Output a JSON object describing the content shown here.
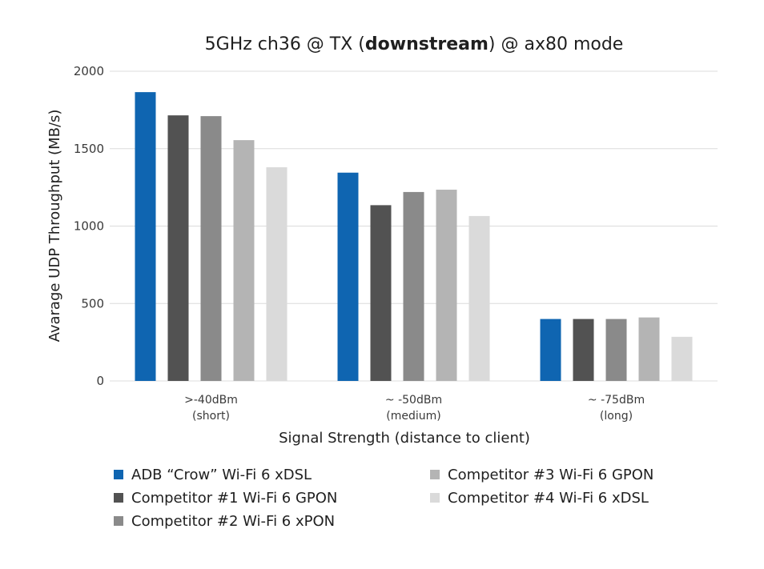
{
  "chart_data": {
    "type": "bar",
    "title": {
      "prefix": "5GHz ch36 @ TX (",
      "bold": "downstream",
      "suffix": ") @ ax80 mode"
    },
    "xlabel": "Signal Strength (distance to client)",
    "ylabel": "Avarage UDP Throughput (MB/s)",
    "ylim": [
      0,
      2000
    ],
    "yticks": [
      0,
      500,
      1000,
      1500,
      2000
    ],
    "grid": true,
    "legend_position": "bottom",
    "categories": [
      {
        "line1": ">-40dBm",
        "line2": "(short)"
      },
      {
        "line1": "~ -50dBm",
        "line2": "(medium)"
      },
      {
        "line1": "~ -75dBm",
        "line2": "(long)"
      }
    ],
    "series": [
      {
        "name": "ADB “Crow” Wi-Fi 6 xDSL",
        "color": "#0f65b1",
        "values": [
          1865,
          1345,
          400
        ]
      },
      {
        "name": "Competitor #1 Wi-Fi 6 GPON",
        "color": "#525252",
        "values": [
          1715,
          1135,
          400
        ]
      },
      {
        "name": "Competitor #2 Wi-Fi 6 xPON",
        "color": "#8a8a8a",
        "values": [
          1710,
          1220,
          400
        ]
      },
      {
        "name": "Competitor #3 Wi-Fi 6 GPON",
        "color": "#b4b4b4",
        "values": [
          1555,
          1235,
          410
        ]
      },
      {
        "name": "Competitor #4 Wi-Fi 6 xDSL",
        "color": "#dadada",
        "values": [
          1380,
          1065,
          285
        ]
      }
    ]
  }
}
